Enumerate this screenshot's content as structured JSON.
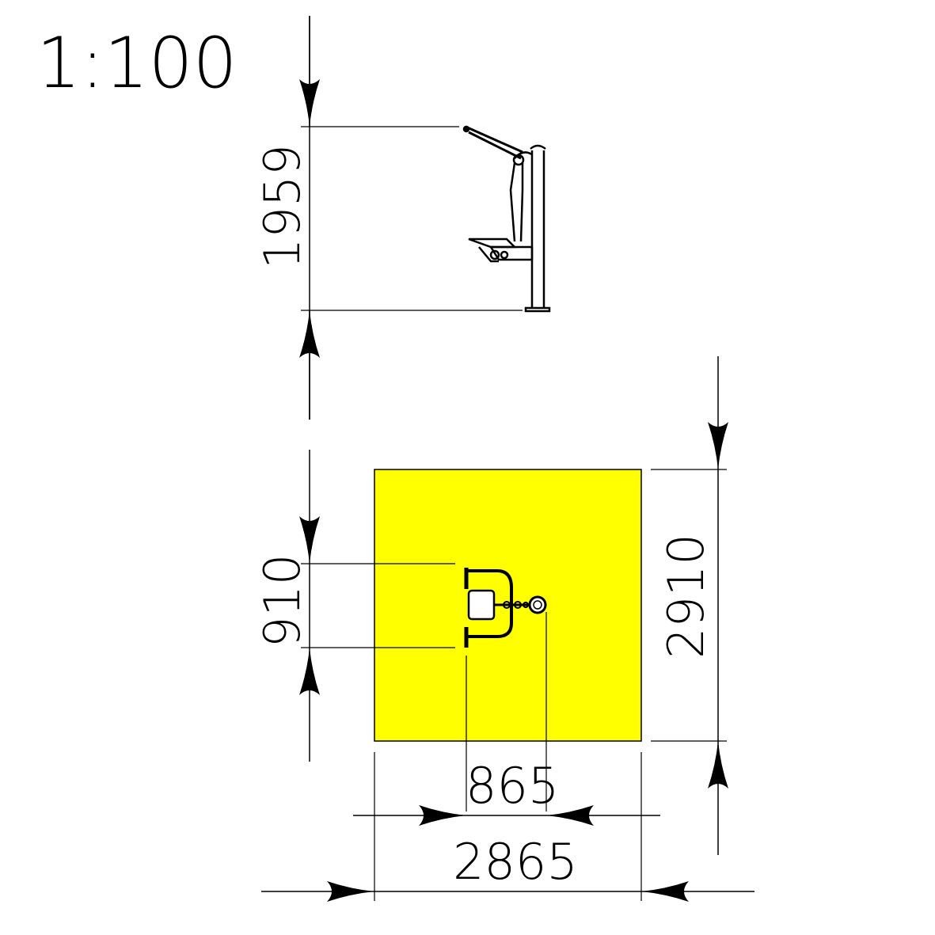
{
  "scale": "1:100",
  "dimensions": {
    "height": "1959",
    "offset_depth": "910",
    "total_depth": "2910",
    "offset_width": "865",
    "total_width": "2865"
  },
  "colors": {
    "safety_zone": "#FFFF00",
    "lines": "#000000"
  }
}
